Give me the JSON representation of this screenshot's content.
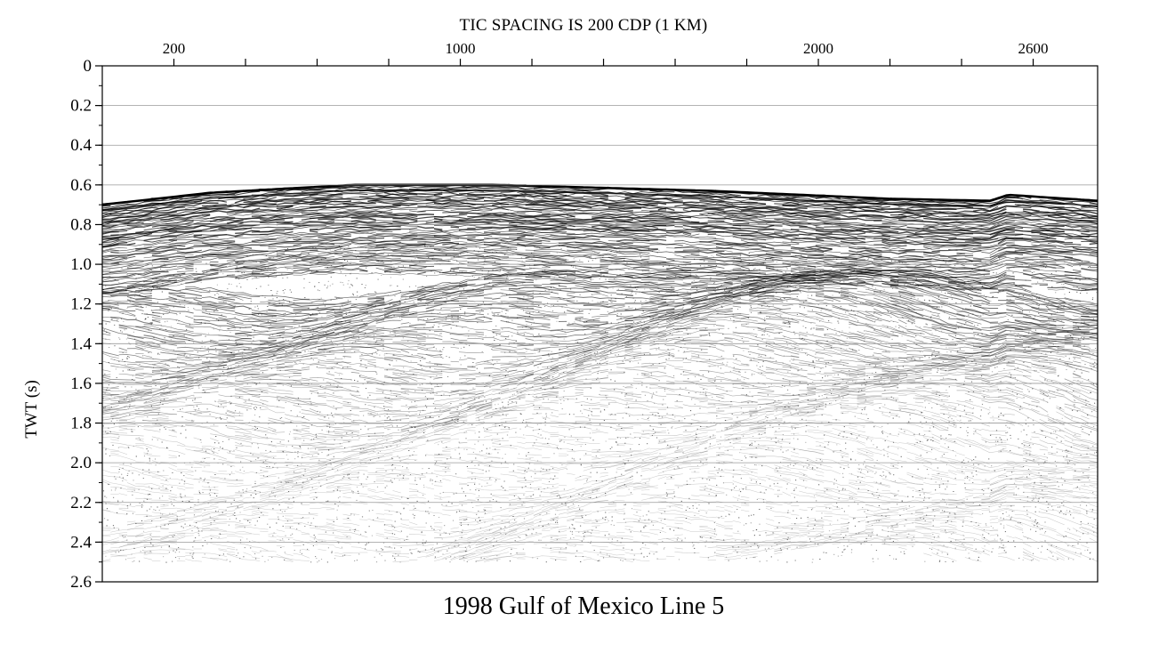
{
  "figure": {
    "top_title": "TIC SPACING IS 200 CDP (1 KM)",
    "bottom_title": "1998 Gulf of Mexico Line 5",
    "y_axis_title": "TWT (s)"
  },
  "axes": {
    "x": {
      "unit": "CDP",
      "range": [
        0,
        2780
      ],
      "tick_spacing": 200,
      "labeled_ticks": [
        200,
        1000,
        2000,
        2600
      ],
      "position": "top"
    },
    "y": {
      "unit": "s",
      "range": [
        0,
        2.6
      ],
      "ticks": [
        0,
        0.2,
        0.4,
        0.6,
        0.8,
        1.0,
        1.2,
        1.4,
        1.6,
        1.8,
        2.0,
        2.2,
        2.4,
        2.6
      ],
      "tick_labels": [
        "0",
        "0.2",
        "0.4",
        "0.6",
        "0.8",
        "1.0",
        "1.2",
        "1.4",
        "1.6",
        "1.8",
        "2.0",
        "2.2",
        "2.4",
        "2.6"
      ],
      "minor_tick_step": 0.1,
      "inverted": true
    }
  },
  "grid": {
    "horizontal_lines_at_major_ticks": true
  },
  "seismic": {
    "style": "grayscale variable-density seismic reflection section",
    "seafloor_twt": [
      {
        "cdp": 0,
        "twt": 0.7
      },
      {
        "cdp": 300,
        "twt": 0.64
      },
      {
        "cdp": 700,
        "twt": 0.6
      },
      {
        "cdp": 1100,
        "twt": 0.6
      },
      {
        "cdp": 1700,
        "twt": 0.63
      },
      {
        "cdp": 2200,
        "twt": 0.67
      },
      {
        "cdp": 2480,
        "twt": 0.68
      },
      {
        "cdp": 2530,
        "twt": 0.65
      },
      {
        "cdp": 2780,
        "twt": 0.68
      }
    ],
    "data_bottom_twt": 2.5,
    "colors": {
      "strong": "#000000",
      "background": "#ffffff",
      "grid": "#9a9a9a"
    }
  }
}
